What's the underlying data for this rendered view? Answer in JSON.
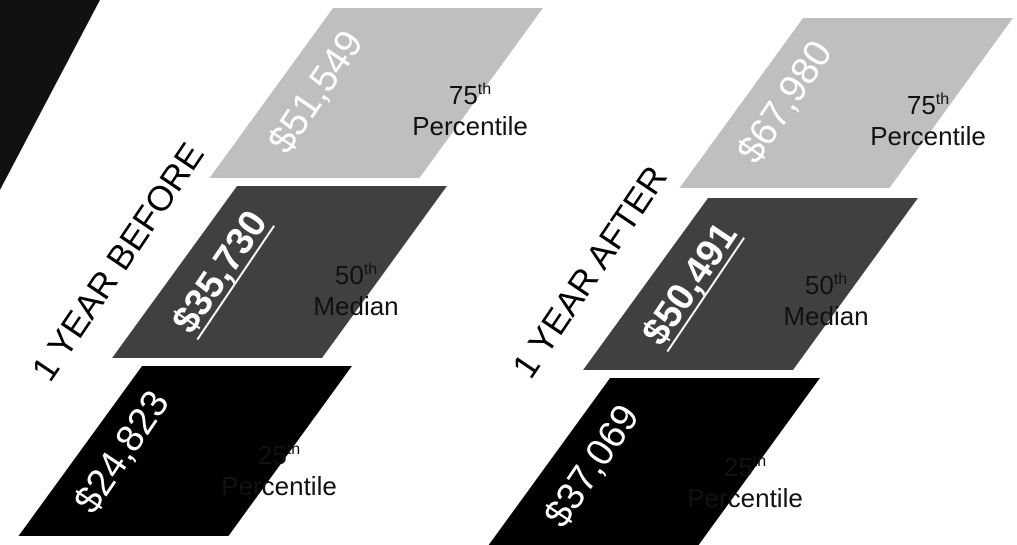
{
  "chart_data": {
    "type": "table",
    "colors": {
      "p75": "#bfbfbf",
      "p50": "#404040",
      "p25": "#000000"
    },
    "panels": [
      {
        "period": "1 YEAR BEFORE",
        "rows": [
          {
            "key": "p75",
            "value": "$51,549",
            "label_num": "75",
            "label_sup": "th",
            "label_text": "Percentile"
          },
          {
            "key": "p50",
            "value": "$35,730",
            "label_num": "50",
            "label_sup": "th",
            "label_text": "Median"
          },
          {
            "key": "p25",
            "value": "$24,823",
            "label_num": "25",
            "label_sup": "th",
            "label_text": "Percentile"
          }
        ]
      },
      {
        "period": "1 YEAR AFTER",
        "rows": [
          {
            "key": "p75",
            "value": "$67,980",
            "label_num": "75",
            "label_sup": "th",
            "label_text": "Percentile"
          },
          {
            "key": "p50",
            "value": "$50,491",
            "label_num": "50",
            "label_sup": "th",
            "label_text": "Median"
          },
          {
            "key": "p25",
            "value": "$37,069",
            "label_num": "25",
            "label_sup": "th",
            "label_text": "Percentile"
          }
        ]
      }
    ]
  }
}
